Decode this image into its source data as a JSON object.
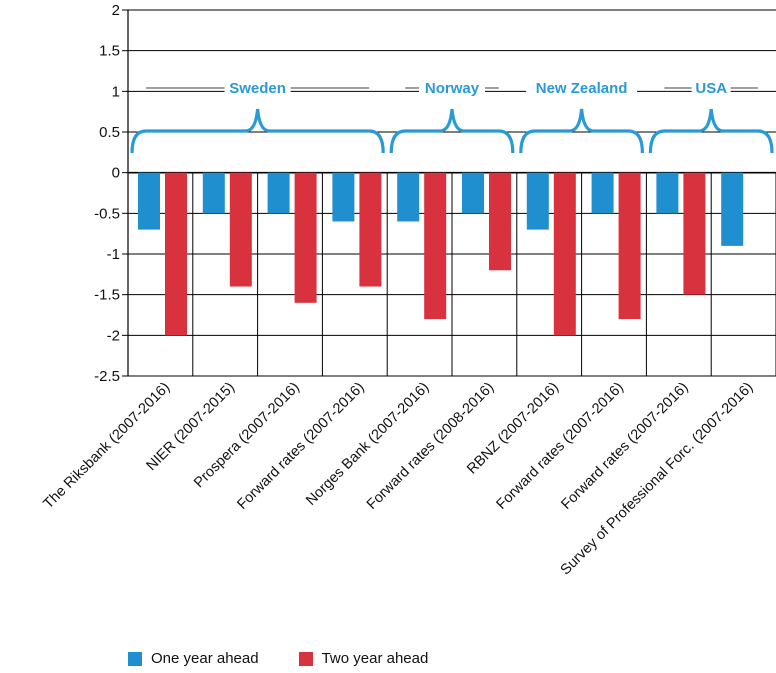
{
  "chart_data": {
    "type": "bar",
    "categories": [
      "The Riksbank (2007-2016)",
      "NIER (2007-2015)",
      "Prospera (2007-2016)",
      "Forward rates (2007-2016)",
      "Norges Bank (2007-2016)",
      "Forward rates (2008-2016)",
      "RBNZ (2007-2016)",
      "Forward rates (2007-2016)",
      "Forward rates (2007-2016)",
      "Survey of Professional Forc. (2007-2016)"
    ],
    "series": [
      {
        "name": "One year ahead",
        "color": "#1f8fd0",
        "values": [
          -0.7,
          -0.5,
          -0.5,
          -0.6,
          -0.6,
          -0.5,
          -0.7,
          -0.5,
          -0.5,
          -0.9
        ]
      },
      {
        "name": "Two year ahead",
        "color": "#d8323f",
        "values": [
          -2.0,
          -1.4,
          -1.6,
          -1.4,
          -1.8,
          -1.2,
          -2.0,
          -1.8,
          -1.5,
          null
        ]
      }
    ],
    "ylim": [
      -2.5,
      2
    ],
    "yticks": [
      "2",
      "1.5",
      "1",
      "0.5",
      "0",
      "-0.5",
      "-1",
      "-1.5",
      "-2",
      "-2.5"
    ],
    "grid": true,
    "groups": [
      {
        "label": "Sweden",
        "categories": [
          0,
          3
        ]
      },
      {
        "label": "Norway",
        "categories": [
          4,
          5
        ]
      },
      {
        "label": "New Zealand",
        "categories": [
          6,
          7
        ]
      },
      {
        "label": "USA",
        "categories": [
          8,
          9
        ]
      }
    ],
    "bracket_color": "#2a9ad6",
    "legend_position": "bottom-left"
  }
}
